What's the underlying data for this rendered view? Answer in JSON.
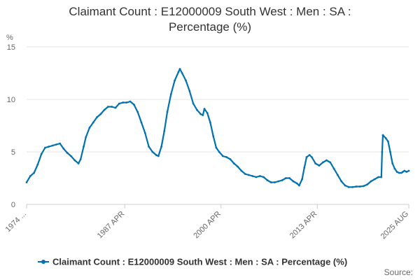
{
  "chart_data": {
    "type": "line",
    "title_line1": "Claimant Count : E12000009 South West : Men : SA :",
    "title_line2": "Percentage (%)",
    "ylabel": "%",
    "ylim": [
      0,
      15
    ],
    "yticks": [
      "0",
      "5",
      "10",
      "15"
    ],
    "xtick_labels": [
      "1974 ...",
      "1987 APR",
      "2000 APR",
      "2013 APR",
      "2025 AUG"
    ],
    "xtick_years": [
      1974.0,
      1987.25,
      2000.25,
      2013.25,
      2025.6
    ],
    "x_range": [
      1974.0,
      2025.6
    ],
    "grid": "horizontal",
    "legend_position": "bottom",
    "color": "#0072b2",
    "series": [
      {
        "name": "Claimant Count : E12000009 South West : Men : SA : Percentage (%)",
        "points": [
          [
            1974.0,
            2.1
          ],
          [
            1974.5,
            2.7
          ],
          [
            1975.0,
            3.0
          ],
          [
            1975.5,
            3.8
          ],
          [
            1976.0,
            4.8
          ],
          [
            1976.5,
            5.4
          ],
          [
            1977.0,
            5.5
          ],
          [
            1977.5,
            5.6
          ],
          [
            1978.0,
            5.7
          ],
          [
            1978.5,
            5.8
          ],
          [
            1979.0,
            5.3
          ],
          [
            1979.5,
            4.9
          ],
          [
            1980.0,
            4.6
          ],
          [
            1980.5,
            4.2
          ],
          [
            1981.0,
            3.9
          ],
          [
            1981.3,
            4.3
          ],
          [
            1981.7,
            5.5
          ],
          [
            1982.0,
            6.4
          ],
          [
            1982.5,
            7.3
          ],
          [
            1983.0,
            7.8
          ],
          [
            1983.5,
            8.3
          ],
          [
            1984.0,
            8.6
          ],
          [
            1984.5,
            9.0
          ],
          [
            1985.0,
            9.3
          ],
          [
            1985.5,
            9.3
          ],
          [
            1986.0,
            9.2
          ],
          [
            1986.5,
            9.6
          ],
          [
            1987.0,
            9.7
          ],
          [
            1987.5,
            9.7
          ],
          [
            1988.0,
            9.8
          ],
          [
            1988.5,
            9.5
          ],
          [
            1989.0,
            8.8
          ],
          [
            1989.5,
            7.8
          ],
          [
            1990.0,
            6.8
          ],
          [
            1990.5,
            5.5
          ],
          [
            1991.0,
            5.0
          ],
          [
            1991.5,
            4.7
          ],
          [
            1991.8,
            4.6
          ],
          [
            1992.2,
            5.5
          ],
          [
            1992.6,
            7.0
          ],
          [
            1993.0,
            8.8
          ],
          [
            1993.5,
            10.5
          ],
          [
            1994.0,
            11.8
          ],
          [
            1994.5,
            12.6
          ],
          [
            1994.7,
            12.9
          ],
          [
            1995.0,
            12.5
          ],
          [
            1995.5,
            11.8
          ],
          [
            1996.0,
            10.8
          ],
          [
            1996.5,
            9.6
          ],
          [
            1997.0,
            9.0
          ],
          [
            1997.5,
            8.6
          ],
          [
            1997.8,
            8.5
          ],
          [
            1998.0,
            9.1
          ],
          [
            1998.4,
            8.7
          ],
          [
            1998.8,
            7.8
          ],
          [
            1999.2,
            6.5
          ],
          [
            1999.6,
            5.4
          ],
          [
            2000.0,
            5.0
          ],
          [
            2000.5,
            4.6
          ],
          [
            2001.0,
            4.5
          ],
          [
            2001.5,
            4.3
          ],
          [
            2002.0,
            3.9
          ],
          [
            2002.5,
            3.6
          ],
          [
            2003.0,
            3.2
          ],
          [
            2003.5,
            2.9
          ],
          [
            2004.0,
            2.8
          ],
          [
            2004.5,
            2.7
          ],
          [
            2005.0,
            2.6
          ],
          [
            2005.5,
            2.7
          ],
          [
            2006.0,
            2.6
          ],
          [
            2006.5,
            2.3
          ],
          [
            2007.0,
            2.1
          ],
          [
            2007.5,
            2.1
          ],
          [
            2008.0,
            2.2
          ],
          [
            2008.5,
            2.3
          ],
          [
            2009.0,
            2.5
          ],
          [
            2009.5,
            2.5
          ],
          [
            2010.0,
            2.2
          ],
          [
            2010.5,
            2.0
          ],
          [
            2010.8,
            1.8
          ],
          [
            2011.2,
            2.4
          ],
          [
            2011.5,
            3.5
          ],
          [
            2011.8,
            4.5
          ],
          [
            2012.2,
            4.7
          ],
          [
            2012.5,
            4.5
          ],
          [
            2013.0,
            3.9
          ],
          [
            2013.5,
            3.7
          ],
          [
            2014.0,
            4.0
          ],
          [
            2014.5,
            4.2
          ],
          [
            2015.0,
            4.0
          ],
          [
            2015.5,
            3.4
          ],
          [
            2016.0,
            2.8
          ],
          [
            2016.5,
            2.2
          ],
          [
            2017.0,
            1.8
          ],
          [
            2017.5,
            1.65
          ],
          [
            2018.0,
            1.65
          ],
          [
            2018.5,
            1.7
          ],
          [
            2019.0,
            1.7
          ],
          [
            2019.5,
            1.75
          ],
          [
            2020.0,
            1.9
          ],
          [
            2020.5,
            2.2
          ],
          [
            2021.0,
            2.4
          ],
          [
            2021.5,
            2.6
          ],
          [
            2021.9,
            2.6
          ],
          [
            2022.0,
            5.0
          ],
          [
            2022.1,
            6.6
          ],
          [
            2022.5,
            6.3
          ],
          [
            2022.8,
            6.0
          ],
          [
            2023.1,
            5.0
          ],
          [
            2023.4,
            3.9
          ],
          [
            2023.7,
            3.4
          ],
          [
            2024.0,
            3.1
          ],
          [
            2024.3,
            3.0
          ],
          [
            2024.6,
            3.0
          ],
          [
            2024.8,
            3.1
          ],
          [
            2025.0,
            3.2
          ],
          [
            2025.3,
            3.1
          ],
          [
            2025.6,
            3.2
          ]
        ]
      }
    ],
    "credit": "Source:"
  }
}
